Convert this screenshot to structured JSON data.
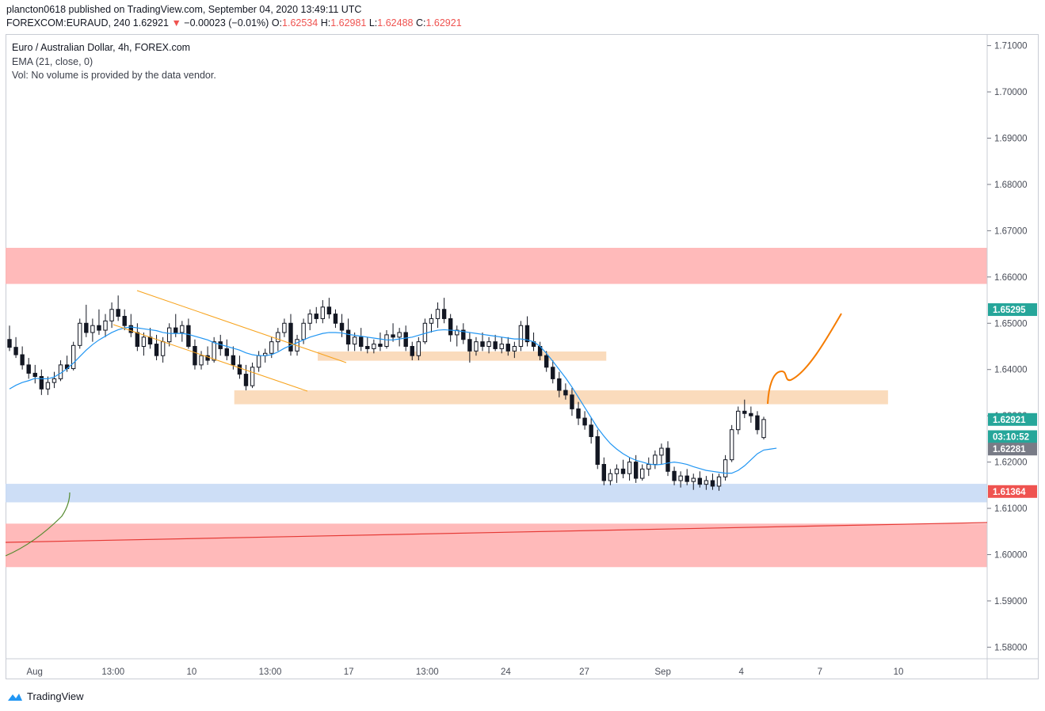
{
  "header": {
    "published": "plancton0618 published on TradingView.com, September 04, 2020 13:49:11 UTC",
    "symbol": "FOREXCOM:EURAUD, 240",
    "last": "1.62921",
    "change_arrow": "▼",
    "change": "−0.00023 (−0.01%)",
    "o_label": "O:",
    "o_value": "1.62534",
    "h_label": "H:",
    "h_value": "1.62981",
    "l_label": "L:",
    "l_value": "1.62488",
    "c_label": "C:",
    "c_value": "1.62921"
  },
  "legend": {
    "title": "Euro / Australian Dollar, 4h, FOREX.com",
    "ema": "EMA (21, close, 0)",
    "vol": "Vol: No volume is provided by the data vendor."
  },
  "footer": {
    "brand": "TradingView"
  },
  "colors": {
    "up": "#26a69a",
    "down": "#ef5350",
    "candle": "#131722",
    "ema": "#2196f3",
    "resistance_zone": "#ffb3b3",
    "orange_zone": "#fad7b5",
    "blue_zone": "#c8daf5",
    "channel": "#f7a21b",
    "projection": "#f57c00",
    "trend": "#e53935",
    "green_curve": "#558b2f"
  },
  "chart_data": {
    "type": "candlestick",
    "title": "Euro / Australian Dollar, 4h, FOREX.com",
    "ylim": [
      1.5775,
      1.7125
    ],
    "y_ticks": [
      "1.71000",
      "1.70000",
      "1.69000",
      "1.68000",
      "1.67000",
      "1.66000",
      "1.65000",
      "1.64000",
      "1.63000",
      "1.62000",
      "1.61000",
      "1.60000",
      "1.59000",
      "1.58000"
    ],
    "x_ticks": [
      "Aug",
      "13:00",
      "10",
      "13:00",
      "17",
      "13:00",
      "24",
      "27",
      "Sep",
      "4",
      "7",
      "10"
    ],
    "price_labels": [
      {
        "text": "1.65295",
        "value": 1.65295,
        "color": "#26a69a"
      },
      {
        "text": "1.62921",
        "value": 1.62921,
        "color": "#26a69a"
      },
      {
        "text": "03:10:52",
        "value": 1.6255,
        "color": "#26a69a"
      },
      {
        "text": "1.62281",
        "value": 1.62281,
        "color": "#787b86"
      },
      {
        "text": "1.61364",
        "value": 1.61364,
        "color": "#ef5350"
      }
    ],
    "zones": [
      {
        "name": "resistance-zone",
        "x0": 0,
        "x1": 1.0,
        "y0": 1.6585,
        "y1": 1.6663,
        "color": "#ffb3b3"
      },
      {
        "name": "support-zone-red",
        "x0": 0,
        "x1": 1.0,
        "y0": 1.5973,
        "y1": 1.6067,
        "color": "#ffb3b3"
      },
      {
        "name": "support-zone-blue",
        "x0": 0,
        "x1": 1.0,
        "y0": 1.6113,
        "y1": 1.6153,
        "color": "#c8daf5"
      },
      {
        "name": "orange-zone-upper",
        "x0": 0.318,
        "x1": 0.612,
        "y0": 1.6419,
        "y1": 1.6439,
        "color": "#fad7b5"
      },
      {
        "name": "orange-zone-lower",
        "x0": 0.233,
        "x1": 0.899,
        "y0": 1.6325,
        "y1": 1.6355,
        "color": "#fad7b5"
      }
    ],
    "candles": [
      [
        1.6465,
        1.6495,
        1.644,
        1.6448
      ],
      [
        1.6448,
        1.647,
        1.6425,
        1.6432
      ],
      [
        1.6432,
        1.645,
        1.64,
        1.641
      ],
      [
        1.641,
        1.6425,
        1.638,
        1.6392
      ],
      [
        1.6392,
        1.641,
        1.637,
        1.6385
      ],
      [
        1.6385,
        1.64,
        1.6345,
        1.6358
      ],
      [
        1.6358,
        1.6385,
        1.6345,
        1.6372
      ],
      [
        1.6372,
        1.6395,
        1.636,
        1.638
      ],
      [
        1.638,
        1.642,
        1.6375,
        1.641
      ],
      [
        1.641,
        1.643,
        1.6395,
        1.6402
      ],
      [
        1.6402,
        1.646,
        1.6398,
        1.6452
      ],
      [
        1.6452,
        1.651,
        1.6445,
        1.65
      ],
      [
        1.65,
        1.654,
        1.647,
        1.648
      ],
      [
        1.648,
        1.651,
        1.646,
        1.6495
      ],
      [
        1.6495,
        1.653,
        1.6475,
        1.6485
      ],
      [
        1.6485,
        1.652,
        1.647,
        1.6505
      ],
      [
        1.6505,
        1.6545,
        1.649,
        1.653
      ],
      [
        1.653,
        1.656,
        1.6505,
        1.6515
      ],
      [
        1.6515,
        1.653,
        1.6485,
        1.6495
      ],
      [
        1.6495,
        1.652,
        1.647,
        1.648
      ],
      [
        1.648,
        1.65,
        1.644,
        1.645
      ],
      [
        1.645,
        1.648,
        1.643,
        1.647
      ],
      [
        1.647,
        1.649,
        1.6445,
        1.6455
      ],
      [
        1.6455,
        1.6475,
        1.642,
        1.643
      ],
      [
        1.643,
        1.647,
        1.6415,
        1.646
      ],
      [
        1.646,
        1.65,
        1.645,
        1.649
      ],
      [
        1.649,
        1.652,
        1.647,
        1.648
      ],
      [
        1.648,
        1.6505,
        1.646,
        1.6495
      ],
      [
        1.6495,
        1.651,
        1.6445,
        1.645
      ],
      [
        1.645,
        1.6465,
        1.64,
        1.641
      ],
      [
        1.641,
        1.644,
        1.64,
        1.643
      ],
      [
        1.643,
        1.645,
        1.641,
        1.642
      ],
      [
        1.642,
        1.647,
        1.6415,
        1.646
      ],
      [
        1.646,
        1.6475,
        1.643,
        1.6445
      ],
      [
        1.6445,
        1.6465,
        1.642,
        1.643
      ],
      [
        1.643,
        1.645,
        1.64,
        1.641
      ],
      [
        1.641,
        1.643,
        1.638,
        1.639
      ],
      [
        1.639,
        1.641,
        1.6355,
        1.6365
      ],
      [
        1.6365,
        1.6415,
        1.636,
        1.6405
      ],
      [
        1.6405,
        1.644,
        1.6395,
        1.643
      ],
      [
        1.643,
        1.6445,
        1.6415,
        1.6435
      ],
      [
        1.6435,
        1.647,
        1.6425,
        1.646
      ],
      [
        1.646,
        1.649,
        1.644,
        1.648
      ],
      [
        1.648,
        1.651,
        1.647,
        1.65
      ],
      [
        1.65,
        1.652,
        1.643,
        1.644
      ],
      [
        1.644,
        1.6475,
        1.643,
        1.6465
      ],
      [
        1.6465,
        1.651,
        1.6455,
        1.65
      ],
      [
        1.65,
        1.653,
        1.6485,
        1.652
      ],
      [
        1.652,
        1.6535,
        1.65,
        1.651
      ],
      [
        1.651,
        1.655,
        1.65,
        1.6535
      ],
      [
        1.6535,
        1.6555,
        1.651,
        1.652
      ],
      [
        1.652,
        1.653,
        1.649,
        1.65
      ],
      [
        1.65,
        1.652,
        1.647,
        1.6485
      ],
      [
        1.6485,
        1.651,
        1.644,
        1.6455
      ],
      [
        1.6455,
        1.648,
        1.644,
        1.647
      ],
      [
        1.647,
        1.649,
        1.644,
        1.645
      ],
      [
        1.645,
        1.647,
        1.6435,
        1.6445
      ],
      [
        1.6445,
        1.6465,
        1.6435,
        1.6455
      ],
      [
        1.6455,
        1.648,
        1.644,
        1.645
      ],
      [
        1.645,
        1.6485,
        1.6445,
        1.6475
      ],
      [
        1.6475,
        1.65,
        1.646,
        1.647
      ],
      [
        1.647,
        1.649,
        1.645,
        1.648
      ],
      [
        1.648,
        1.6495,
        1.644,
        1.645
      ],
      [
        1.645,
        1.646,
        1.642,
        1.643
      ],
      [
        1.643,
        1.647,
        1.642,
        1.646
      ],
      [
        1.646,
        1.651,
        1.6455,
        1.65
      ],
      [
        1.65,
        1.652,
        1.648,
        1.651
      ],
      [
        1.651,
        1.6545,
        1.649,
        1.653
      ],
      [
        1.653,
        1.6555,
        1.65,
        1.651
      ],
      [
        1.651,
        1.652,
        1.646,
        1.6475
      ],
      [
        1.6475,
        1.6495,
        1.645,
        1.6485
      ],
      [
        1.6485,
        1.65,
        1.6455,
        1.6465
      ],
      [
        1.6465,
        1.648,
        1.6415,
        1.644
      ],
      [
        1.644,
        1.647,
        1.643,
        1.646
      ],
      [
        1.646,
        1.648,
        1.644,
        1.645
      ],
      [
        1.645,
        1.647,
        1.6435,
        1.646
      ],
      [
        1.646,
        1.6475,
        1.644,
        1.6445
      ],
      [
        1.6445,
        1.647,
        1.6435,
        1.6455
      ],
      [
        1.6455,
        1.647,
        1.643,
        1.644
      ],
      [
        1.644,
        1.646,
        1.6425,
        1.645
      ],
      [
        1.645,
        1.6505,
        1.644,
        1.6495
      ],
      [
        1.6495,
        1.6515,
        1.645,
        1.646
      ],
      [
        1.646,
        1.648,
        1.644,
        1.645
      ],
      [
        1.645,
        1.646,
        1.642,
        1.643
      ],
      [
        1.643,
        1.644,
        1.6395,
        1.6405
      ],
      [
        1.6405,
        1.642,
        1.637,
        1.638
      ],
      [
        1.638,
        1.6395,
        1.634,
        1.6355
      ],
      [
        1.6355,
        1.637,
        1.6335,
        1.6345
      ],
      [
        1.6345,
        1.636,
        1.63,
        1.6315
      ],
      [
        1.6315,
        1.633,
        1.628,
        1.6295
      ],
      [
        1.6295,
        1.631,
        1.627,
        1.628
      ],
      [
        1.628,
        1.6295,
        1.624,
        1.6255
      ],
      [
        1.6255,
        1.627,
        1.6185,
        1.6195
      ],
      [
        1.6195,
        1.621,
        1.615,
        1.616
      ],
      [
        1.616,
        1.6185,
        1.615,
        1.6175
      ],
      [
        1.6175,
        1.6195,
        1.6155,
        1.6185
      ],
      [
        1.6185,
        1.6205,
        1.6165,
        1.6175
      ],
      [
        1.6175,
        1.621,
        1.616,
        1.62
      ],
      [
        1.62,
        1.6215,
        1.6155,
        1.6165
      ],
      [
        1.6165,
        1.6195,
        1.616,
        1.6185
      ],
      [
        1.6185,
        1.621,
        1.617,
        1.6195
      ],
      [
        1.6195,
        1.6225,
        1.6185,
        1.6215
      ],
      [
        1.6215,
        1.624,
        1.6195,
        1.623
      ],
      [
        1.623,
        1.6245,
        1.617,
        1.618
      ],
      [
        1.618,
        1.619,
        1.615,
        1.616
      ],
      [
        1.616,
        1.618,
        1.6145,
        1.617
      ],
      [
        1.617,
        1.6185,
        1.615,
        1.6158
      ],
      [
        1.6158,
        1.6175,
        1.614,
        1.6165
      ],
      [
        1.6165,
        1.618,
        1.6145,
        1.6152
      ],
      [
        1.6152,
        1.617,
        1.614,
        1.616
      ],
      [
        1.616,
        1.6175,
        1.614,
        1.6148
      ],
      [
        1.6148,
        1.6175,
        1.6138,
        1.6168
      ],
      [
        1.6168,
        1.6215,
        1.616,
        1.6205
      ],
      [
        1.6205,
        1.628,
        1.62,
        1.627
      ],
      [
        1.627,
        1.632,
        1.626,
        1.631
      ],
      [
        1.631,
        1.6335,
        1.6295,
        1.6305
      ],
      [
        1.6305,
        1.632,
        1.6285,
        1.63
      ],
      [
        1.63,
        1.631,
        1.626,
        1.627
      ],
      [
        1.6253,
        1.6298,
        1.6249,
        1.6292
      ]
    ],
    "ema": [
      1.6358,
      1.6366,
      1.6372,
      1.6376,
      1.6381,
      1.638,
      1.638,
      1.6384,
      1.6392,
      1.6402,
      1.6414,
      1.6428,
      1.6442,
      1.6454,
      1.6464,
      1.6472,
      1.648,
      1.6486,
      1.649,
      1.6492,
      1.649,
      1.6488,
      1.6486,
      1.6484,
      1.648,
      1.6478,
      1.6478,
      1.6478,
      1.6476,
      1.6472,
      1.6468,
      1.6464,
      1.6458,
      1.6454,
      1.645,
      1.6446,
      1.6442,
      1.6436,
      1.6432,
      1.643,
      1.643,
      1.6432,
      1.6438,
      1.6446,
      1.6452,
      1.6458,
      1.6464,
      1.647,
      1.6474,
      1.6478,
      1.648,
      1.648,
      1.6479,
      1.6476,
      1.6474,
      1.6472,
      1.647,
      1.6468,
      1.6466,
      1.6464,
      1.6464,
      1.6466,
      1.6468,
      1.647,
      1.6474,
      1.6478,
      1.6482,
      1.6485,
      1.6486,
      1.6485,
      1.6484,
      1.6482,
      1.648,
      1.6478,
      1.6476,
      1.6474,
      1.6472,
      1.647,
      1.6468,
      1.6466,
      1.6466,
      1.6464,
      1.646,
      1.645,
      1.6435,
      1.6418,
      1.64,
      1.6382,
      1.6362,
      1.634,
      1.6318,
      1.6296,
      1.6274,
      1.6256,
      1.624,
      1.6228,
      1.6218,
      1.621,
      1.6204,
      1.62,
      1.6196,
      1.6194,
      1.6195,
      1.6198,
      1.62,
      1.6198,
      1.6195,
      1.619,
      1.6186,
      1.6182,
      1.618,
      1.6178,
      1.6176,
      1.6176,
      1.6182,
      1.6192,
      1.6205,
      1.6218,
      1.6226,
      1.6228,
      1.623
    ]
  }
}
